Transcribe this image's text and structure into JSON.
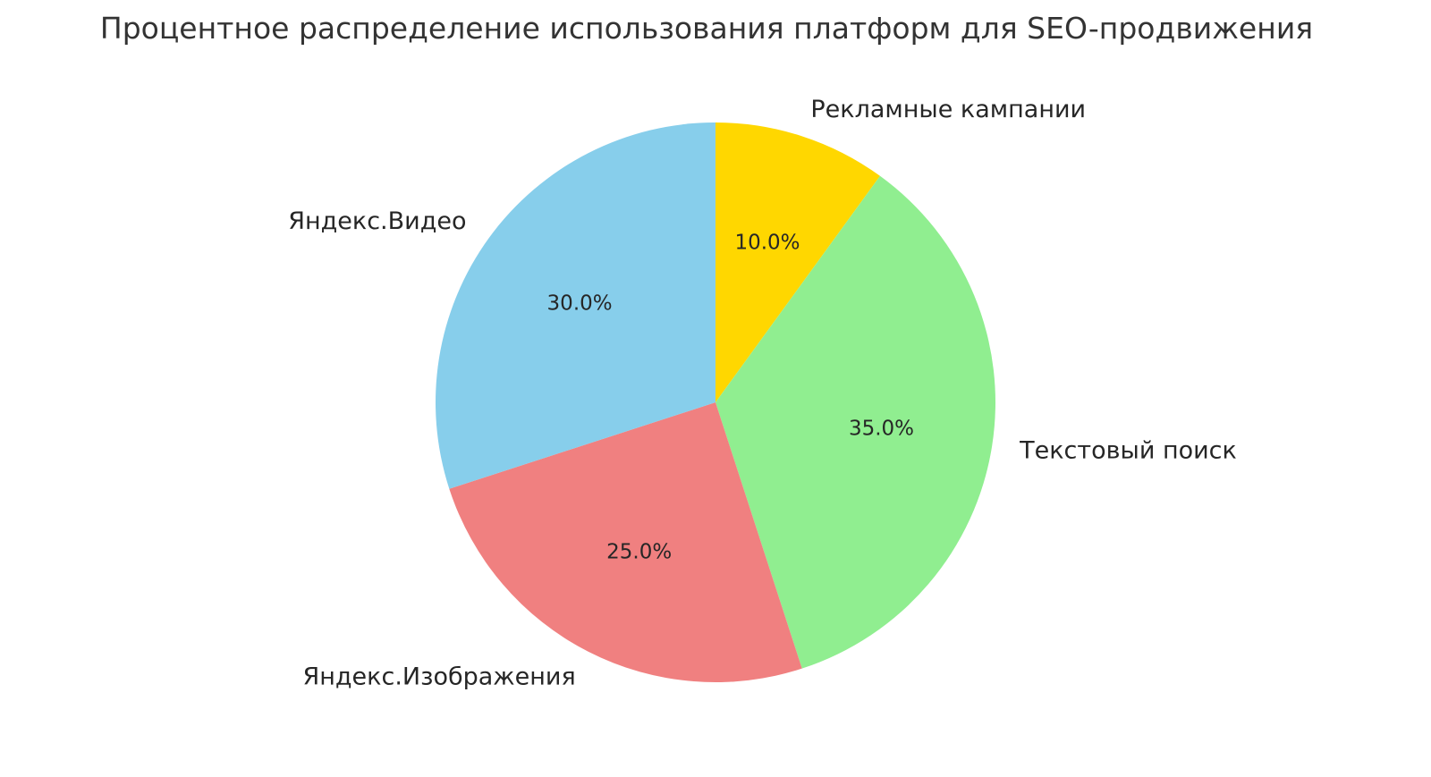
{
  "chart_data": {
    "type": "pie",
    "title": "Процентное распределение использования платформ для SEO-продвижения",
    "slices": [
      {
        "label": "Рекламные кампании",
        "value": 10.0,
        "pct_label": "10.0%",
        "color": "#FFD700"
      },
      {
        "label": "Текстовый поиск",
        "value": 35.0,
        "pct_label": "35.0%",
        "color": "#90EE90"
      },
      {
        "label": "Яндекс.Изображения",
        "value": 25.0,
        "pct_label": "25.0%",
        "color": "#F08080"
      },
      {
        "label": "Яндекс.Видео",
        "value": 30.0,
        "pct_label": "30.0%",
        "color": "#87CEEB"
      }
    ],
    "start_angle_deg": 90,
    "direction": "clockwise",
    "legend": "none",
    "background_color": "#FFFFFF",
    "text_color": "#262626",
    "title_color": "#333333"
  }
}
